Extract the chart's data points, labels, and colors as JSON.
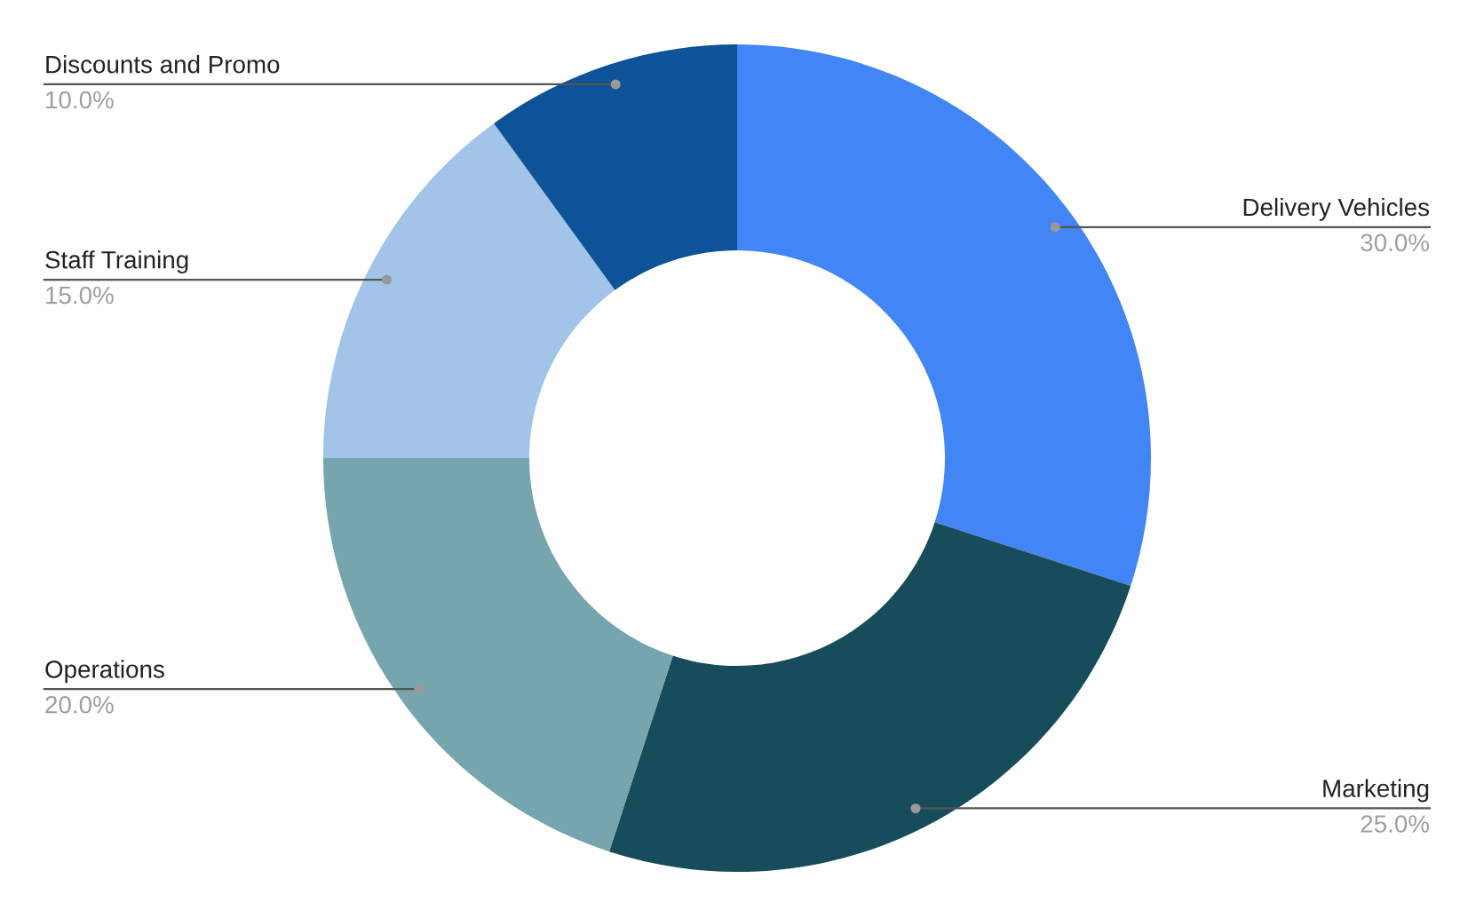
{
  "chart_data": {
    "type": "donut",
    "categories": [
      "Delivery Vehicles",
      "Marketing",
      "Operations",
      "Staff Training",
      "Discounts and Promo"
    ],
    "values": [
      30,
      25,
      20,
      15,
      10
    ],
    "value_labels": [
      "30.0%",
      "25.0%",
      "20.0%",
      "15.0%",
      "10.0%"
    ],
    "colors": [
      "#4285f4",
      "#174c5a",
      "#77a5ad",
      "#a1c4e8",
      "#0e5297"
    ],
    "legend": false
  }
}
